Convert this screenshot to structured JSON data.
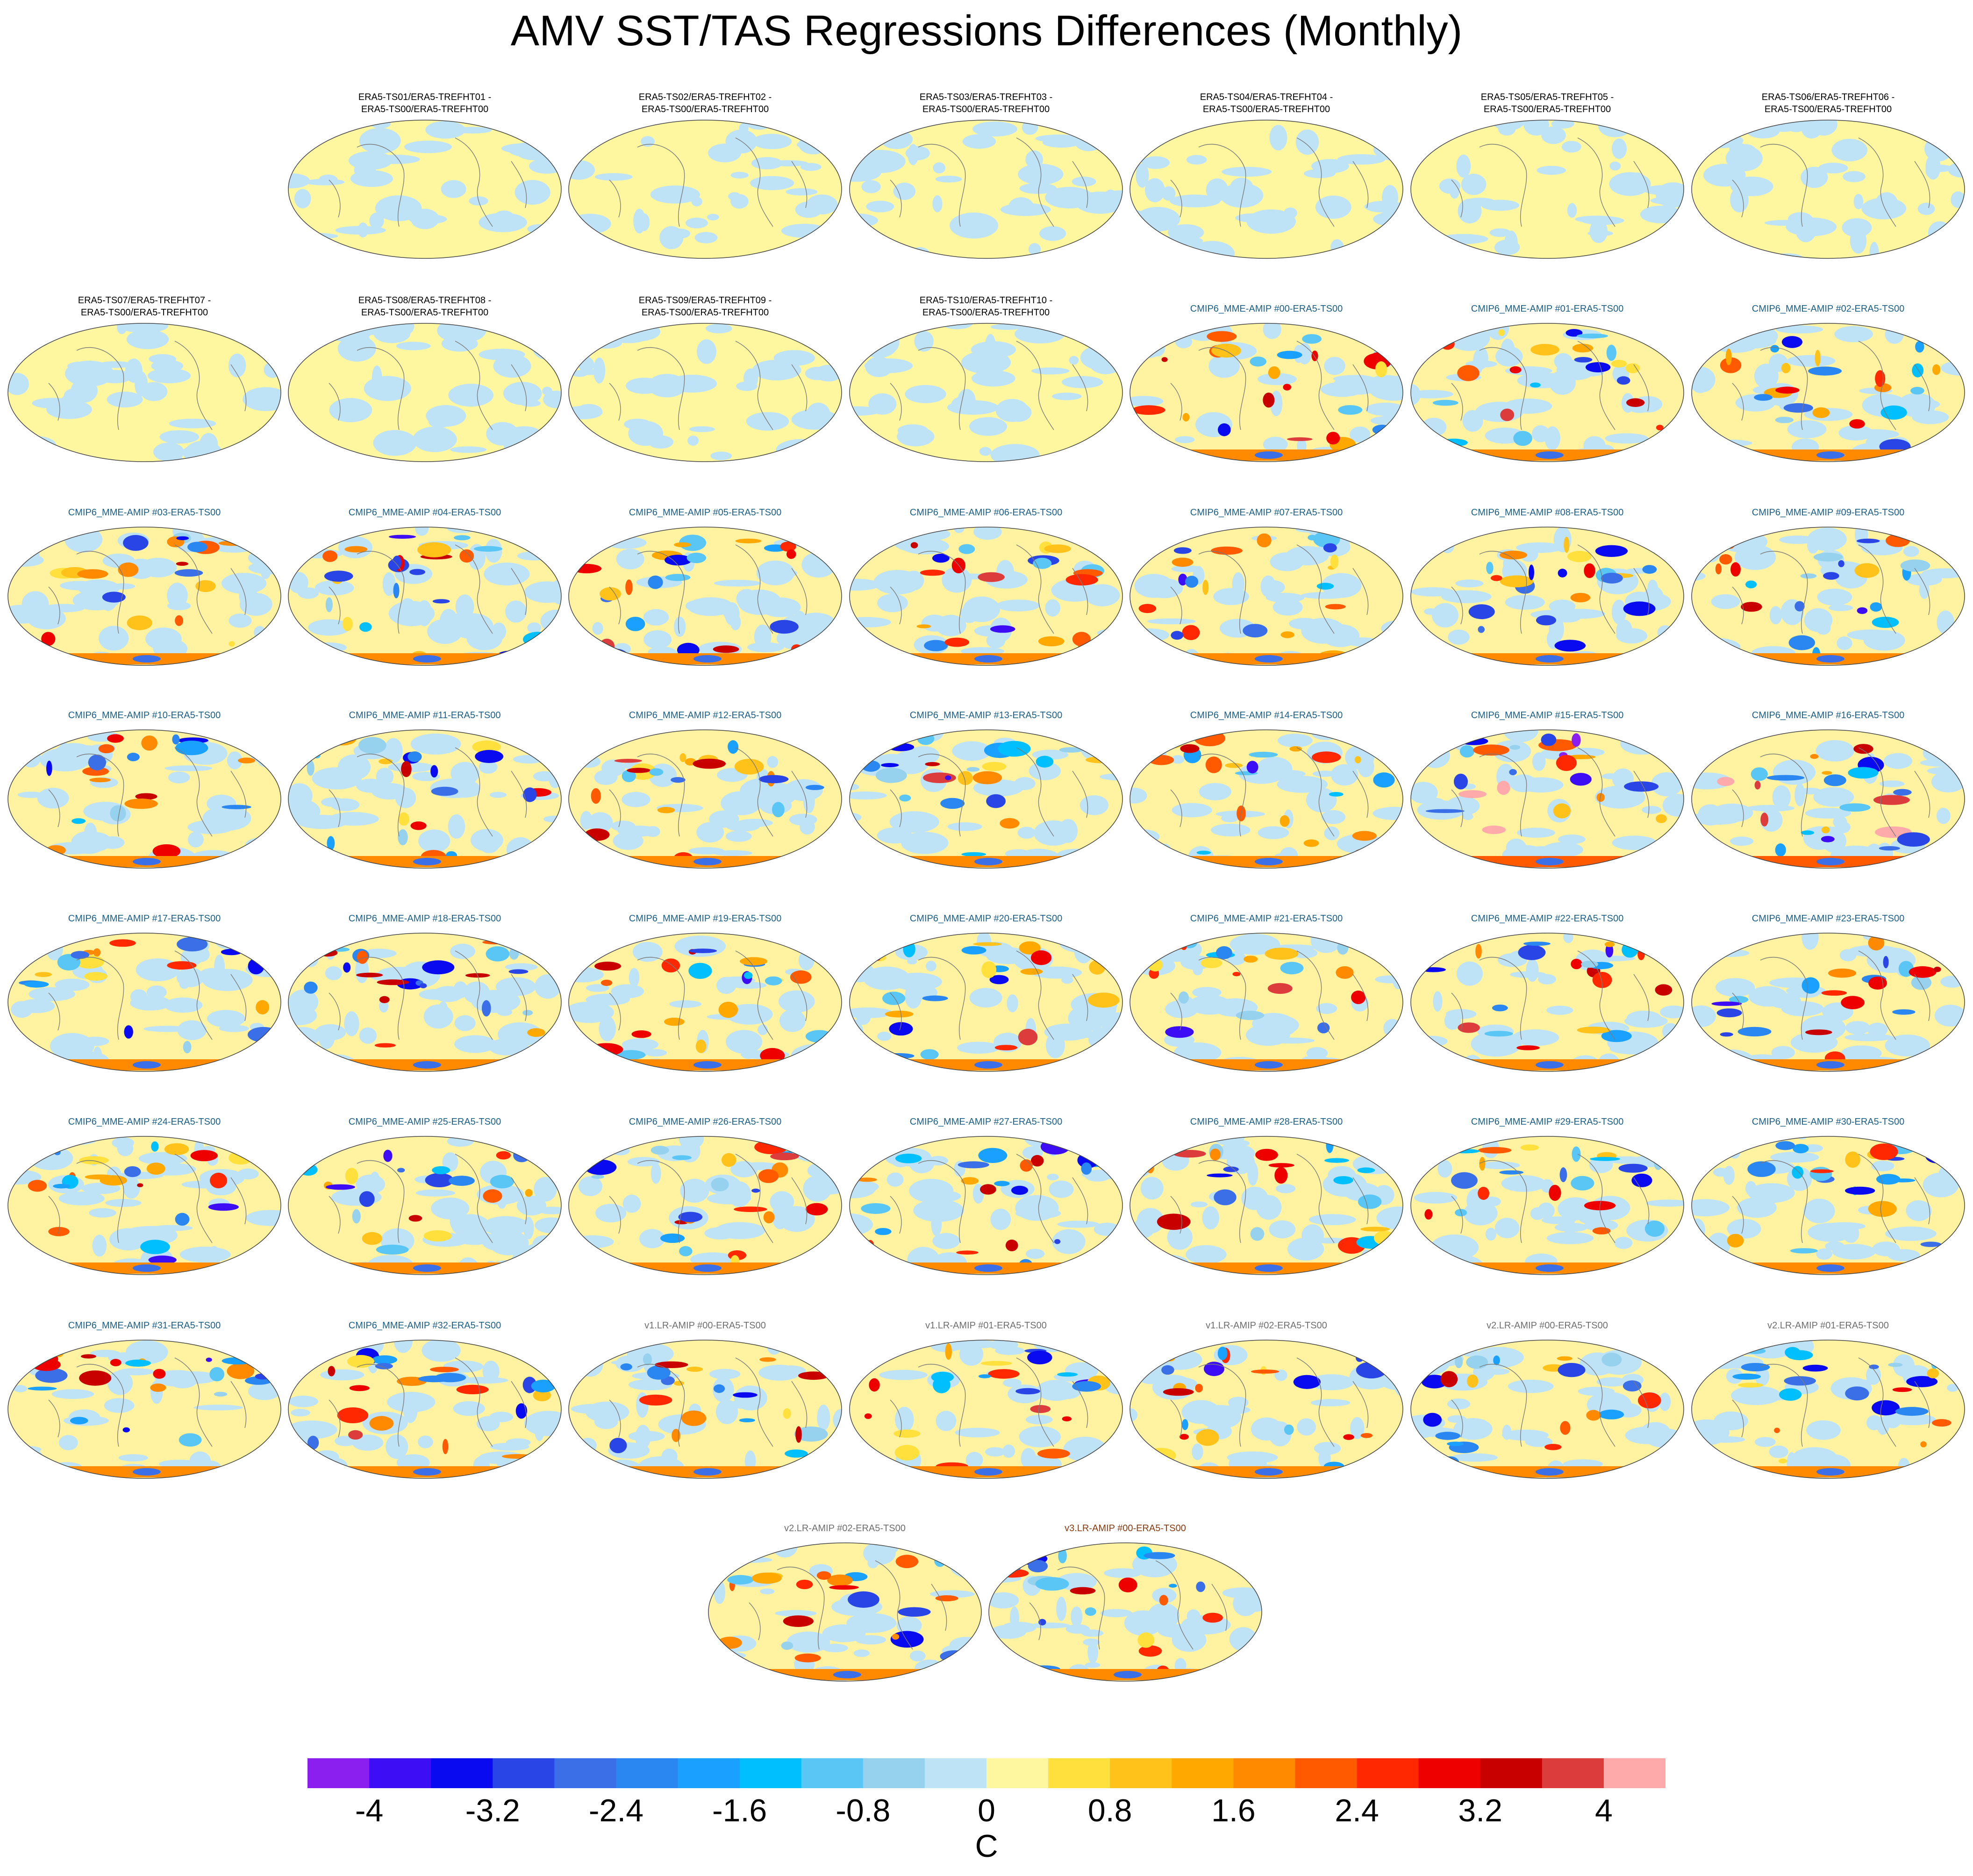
{
  "title": "AMV SST/TAS Regressions Differences (Monthly)",
  "chart_data": {
    "type": "heatmap",
    "description_kind": "grid of global map panels showing regression differences",
    "units": "C",
    "colorbar": {
      "levels": [
        -4.4,
        -4.0,
        -3.6,
        -3.2,
        -2.8,
        -2.4,
        -2.0,
        -1.6,
        -1.2,
        -0.8,
        -0.4,
        0,
        0.4,
        0.8,
        1.2,
        1.6,
        2.0,
        2.4,
        2.8,
        3.2,
        3.6,
        4.0,
        4.4
      ],
      "colors": [
        "#8a1ff0",
        "#3c0df5",
        "#0a0af0",
        "#2a45e6",
        "#3a6fe8",
        "#2a86f0",
        "#1aa0ff",
        "#00bfff",
        "#5ac6f5",
        "#96d2ee",
        "#bfe3f6",
        "#fff6a0",
        "#ffe03c",
        "#ffc21a",
        "#ffa800",
        "#ff8a00",
        "#ff5a00",
        "#ff2800",
        "#ee0000",
        "#c80000",
        "#dc3c3c",
        "#ffaaaa"
      ],
      "tick_labels": [
        "-4",
        "-3.2",
        "-2.4",
        "-1.6",
        "-0.8",
        "0",
        "0.8",
        "1.6",
        "2.4",
        "3.2",
        "4"
      ],
      "tick_values": [
        -4,
        -3.2,
        -2.4,
        -1.6,
        -0.8,
        0,
        0.8,
        1.6,
        2.4,
        3.2,
        4
      ],
      "unit_label": "C"
    },
    "panels": [
      {
        "title": [
          "ERA5-TS01/ERA5-TREFHT01 -",
          "ERA5-TS00/ERA5-TREFHT00"
        ],
        "group": "era5",
        "intensity": 0.15
      },
      {
        "title": [
          "ERA5-TS02/ERA5-TREFHT02 -",
          "ERA5-TS00/ERA5-TREFHT00"
        ],
        "group": "era5",
        "intensity": 0.15
      },
      {
        "title": [
          "ERA5-TS03/ERA5-TREFHT03 -",
          "ERA5-TS00/ERA5-TREFHT00"
        ],
        "group": "era5",
        "intensity": 0.15
      },
      {
        "title": [
          "ERA5-TS04/ERA5-TREFHT04 -",
          "ERA5-TS00/ERA5-TREFHT00"
        ],
        "group": "era5",
        "intensity": 0.15
      },
      {
        "title": [
          "ERA5-TS05/ERA5-TREFHT05 -",
          "ERA5-TS00/ERA5-TREFHT00"
        ],
        "group": "era5",
        "intensity": 0.15
      },
      {
        "title": [
          "ERA5-TS06/ERA5-TREFHT06 -",
          "ERA5-TS00/ERA5-TREFHT00"
        ],
        "group": "era5",
        "intensity": 0.15
      },
      {
        "title": [
          "ERA5-TS07/ERA5-TREFHT07 -",
          "ERA5-TS00/ERA5-TREFHT00"
        ],
        "group": "era5",
        "intensity": 0.15
      },
      {
        "title": [
          "ERA5-TS08/ERA5-TREFHT08 -",
          "ERA5-TS00/ERA5-TREFHT00"
        ],
        "group": "era5",
        "intensity": 0.15
      },
      {
        "title": [
          "ERA5-TS09/ERA5-TREFHT09 -",
          "ERA5-TS00/ERA5-TREFHT00"
        ],
        "group": "era5",
        "intensity": 0.15
      },
      {
        "title": [
          "ERA5-TS10/ERA5-TREFHT10 -",
          "ERA5-TS00/ERA5-TREFHT00"
        ],
        "group": "era5",
        "intensity": 0.15
      },
      {
        "title": [
          "CMIP6_MME-AMIP  #00-ERA5-TS00"
        ],
        "group": "cmip",
        "intensity": 1
      },
      {
        "title": [
          "CMIP6_MME-AMIP  #01-ERA5-TS00"
        ],
        "group": "cmip",
        "intensity": 1
      },
      {
        "title": [
          "CMIP6_MME-AMIP  #02-ERA5-TS00"
        ],
        "group": "cmip",
        "intensity": 1
      },
      {
        "title": [
          "CMIP6_MME-AMIP  #03-ERA5-TS00"
        ],
        "group": "cmip",
        "intensity": 1
      },
      {
        "title": [
          "CMIP6_MME-AMIP  #04-ERA5-TS00"
        ],
        "group": "cmip",
        "intensity": 1
      },
      {
        "title": [
          "CMIP6_MME-AMIP  #05-ERA5-TS00"
        ],
        "group": "cmip",
        "intensity": 1
      },
      {
        "title": [
          "CMIP6_MME-AMIP  #06-ERA5-TS00"
        ],
        "group": "cmip",
        "intensity": 1
      },
      {
        "title": [
          "CMIP6_MME-AMIP  #07-ERA5-TS00"
        ],
        "group": "cmip",
        "intensity": 1
      },
      {
        "title": [
          "CMIP6_MME-AMIP  #08-ERA5-TS00"
        ],
        "group": "cmip",
        "intensity": 1
      },
      {
        "title": [
          "CMIP6_MME-AMIP  #09-ERA5-TS00"
        ],
        "group": "cmip",
        "intensity": 1
      },
      {
        "title": [
          "CMIP6_MME-AMIP  #10-ERA5-TS00"
        ],
        "group": "cmip",
        "intensity": 1
      },
      {
        "title": [
          "CMIP6_MME-AMIP  #11-ERA5-TS00"
        ],
        "group": "cmip",
        "intensity": 1
      },
      {
        "title": [
          "CMIP6_MME-AMIP  #12-ERA5-TS00"
        ],
        "group": "cmip",
        "intensity": 1
      },
      {
        "title": [
          "CMIP6_MME-AMIP  #13-ERA5-TS00"
        ],
        "group": "cmip",
        "intensity": 1
      },
      {
        "title": [
          "CMIP6_MME-AMIP  #14-ERA5-TS00"
        ],
        "group": "cmip",
        "intensity": 1
      },
      {
        "title": [
          "CMIP6_MME-AMIP  #15-ERA5-TS00"
        ],
        "group": "cmip",
        "intensity": 1.3
      },
      {
        "title": [
          "CMIP6_MME-AMIP  #16-ERA5-TS00"
        ],
        "group": "cmip",
        "intensity": 1.3
      },
      {
        "title": [
          "CMIP6_MME-AMIP  #17-ERA5-TS00"
        ],
        "group": "cmip",
        "intensity": 1
      },
      {
        "title": [
          "CMIP6_MME-AMIP  #18-ERA5-TS00"
        ],
        "group": "cmip",
        "intensity": 1
      },
      {
        "title": [
          "CMIP6_MME-AMIP  #19-ERA5-TS00"
        ],
        "group": "cmip",
        "intensity": 1
      },
      {
        "title": [
          "CMIP6_MME-AMIP  #20-ERA5-TS00"
        ],
        "group": "cmip",
        "intensity": 1
      },
      {
        "title": [
          "CMIP6_MME-AMIP  #21-ERA5-TS00"
        ],
        "group": "cmip",
        "intensity": 1
      },
      {
        "title": [
          "CMIP6_MME-AMIP  #22-ERA5-TS00"
        ],
        "group": "cmip",
        "intensity": 1
      },
      {
        "title": [
          "CMIP6_MME-AMIP  #23-ERA5-TS00"
        ],
        "group": "cmip",
        "intensity": 1
      },
      {
        "title": [
          "CMIP6_MME-AMIP  #24-ERA5-TS00"
        ],
        "group": "cmip",
        "intensity": 1
      },
      {
        "title": [
          "CMIP6_MME-AMIP  #25-ERA5-TS00"
        ],
        "group": "cmip",
        "intensity": 1
      },
      {
        "title": [
          "CMIP6_MME-AMIP  #26-ERA5-TS00"
        ],
        "group": "cmip",
        "intensity": 1
      },
      {
        "title": [
          "CMIP6_MME-AMIP  #27-ERA5-TS00"
        ],
        "group": "cmip",
        "intensity": 1
      },
      {
        "title": [
          "CMIP6_MME-AMIP  #28-ERA5-TS00"
        ],
        "group": "cmip",
        "intensity": 1
      },
      {
        "title": [
          "CMIP6_MME-AMIP  #29-ERA5-TS00"
        ],
        "group": "cmip",
        "intensity": 1
      },
      {
        "title": [
          "CMIP6_MME-AMIP  #30-ERA5-TS00"
        ],
        "group": "cmip",
        "intensity": 1
      },
      {
        "title": [
          "CMIP6_MME-AMIP  #31-ERA5-TS00"
        ],
        "group": "cmip",
        "intensity": 1
      },
      {
        "title": [
          "CMIP6_MME-AMIP  #32-ERA5-TS00"
        ],
        "group": "cmip",
        "intensity": 1
      },
      {
        "title": [
          "v1.LR-AMIP  #00-ERA5-TS00"
        ],
        "group": "v1",
        "intensity": 1
      },
      {
        "title": [
          "v1.LR-AMIP  #01-ERA5-TS00"
        ],
        "group": "v1",
        "intensity": 1
      },
      {
        "title": [
          "v1.LR-AMIP  #02-ERA5-TS00"
        ],
        "group": "v1",
        "intensity": 1
      },
      {
        "title": [
          "v2.LR-AMIP  #00-ERA5-TS00"
        ],
        "group": "v2",
        "intensity": 1
      },
      {
        "title": [
          "v2.LR-AMIP  #01-ERA5-TS00"
        ],
        "group": "v2",
        "intensity": 1
      },
      {
        "title": [
          "v2.LR-AMIP  #02-ERA5-TS00"
        ],
        "group": "v2",
        "intensity": 1
      },
      {
        "title": [
          "v3.LR-AMIP  #00-ERA5-TS00"
        ],
        "group": "v3",
        "intensity": 1
      }
    ]
  }
}
